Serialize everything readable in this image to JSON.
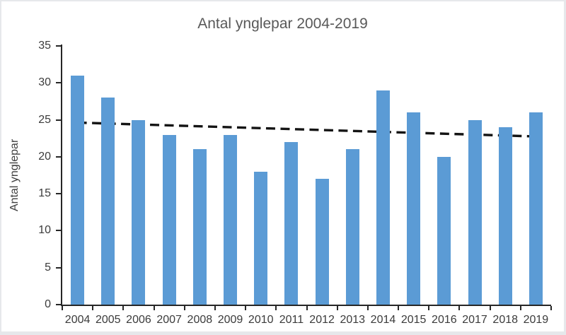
{
  "frame": {
    "background": "#ffffff",
    "border_color": "#e6e8eb"
  },
  "chart_data": {
    "type": "bar",
    "title": "Antal ynglepar 2004-2019",
    "ylabel": "Antal ynglepar",
    "xlabel": "",
    "categories": [
      "2004",
      "2005",
      "2006",
      "2007",
      "2008",
      "2009",
      "2010",
      "2011",
      "2012",
      "2013",
      "2014",
      "2015",
      "2016",
      "2017",
      "2018",
      "2019"
    ],
    "series": [
      {
        "name": "Antal ynglepar",
        "values": [
          31,
          28,
          25,
          23,
          21,
          23,
          18,
          22,
          17,
          21,
          29,
          26,
          20,
          25,
          24,
          26
        ]
      }
    ],
    "ylim": [
      0,
      35
    ],
    "yticks": [
      0,
      5,
      10,
      15,
      20,
      25,
      30,
      35
    ],
    "grid": false,
    "legend": "none",
    "trendline": {
      "type": "linear",
      "style": "dashed",
      "start_value": 24.625,
      "end_value": 22.75
    },
    "colors": {
      "bar": "#5b9bd5",
      "trendline": "#141414",
      "axis": "#262626",
      "tick_text": "#3b3b3b",
      "title_text": "#595959"
    }
  }
}
